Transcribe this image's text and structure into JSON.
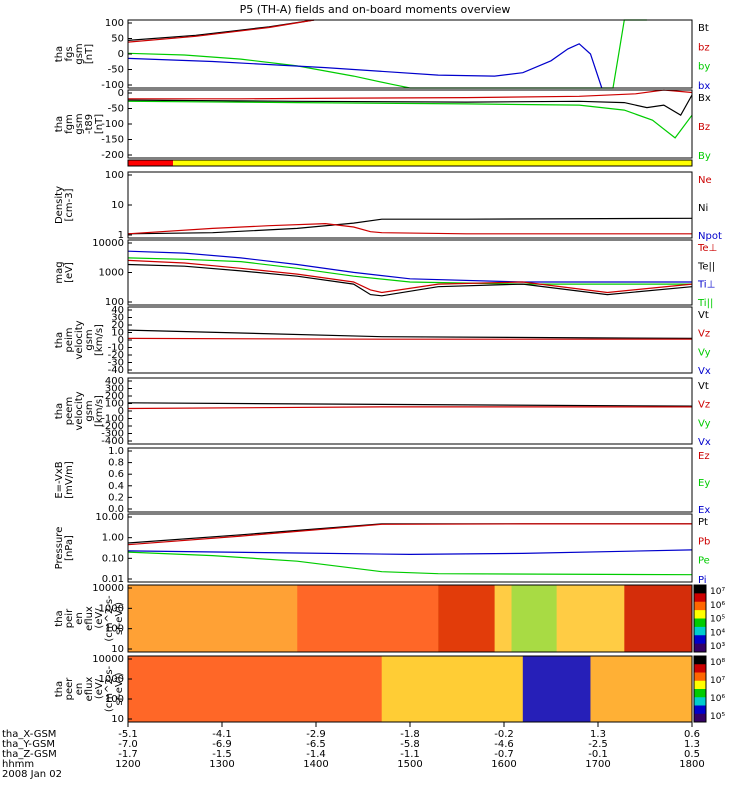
{
  "title": "P5 (TH-A) fields and on-board moments overview",
  "colors": {
    "black": "#000000",
    "red": "#cc0000",
    "green": "#00cc00",
    "blue": "#0000cc",
    "yellow": "#ffff00",
    "stateRed": "#ff0000"
  },
  "chart_data": [
    {
      "id": "fgs",
      "type": "line",
      "ylabel": [
        "tha",
        "fgs",
        "gsm",
        "[nT]"
      ],
      "ylim": [
        -100,
        100
      ],
      "yticks": [
        "100",
        "50",
        "0",
        "-50",
        "-100"
      ],
      "legend": [
        {
          "name": "Bt",
          "color": "#000000"
        },
        {
          "name": "bz",
          "color": "#cc0000"
        },
        {
          "name": "by",
          "color": "#00cc00"
        },
        {
          "name": "bx",
          "color": "#0000cc"
        }
      ],
      "series": [
        {
          "name": "Bt",
          "x": [
            0,
            0.12,
            0.25,
            0.33
          ],
          "y": [
            40,
            55,
            80,
            100
          ]
        },
        {
          "name": "bz",
          "x": [
            0,
            0.12,
            0.25,
            0.33
          ],
          "y": [
            35,
            52,
            78,
            100
          ]
        },
        {
          "name": "by",
          "x": [
            0,
            0.1,
            0.2,
            0.3,
            0.4,
            0.47,
            0.5,
            0.86,
            0.87,
            0.88,
            0.92
          ],
          "y": [
            2,
            -3,
            -15,
            -35,
            -65,
            -90,
            -100,
            -100,
            0,
            100,
            100
          ]
        },
        {
          "name": "bx",
          "x": [
            0,
            0.15,
            0.35,
            0.55,
            0.65,
            0.7,
            0.75,
            0.78,
            0.8,
            0.82,
            0.84
          ],
          "y": [
            -13,
            -22,
            -40,
            -62,
            -65,
            -55,
            -20,
            15,
            30,
            0,
            -100
          ]
        }
      ]
    },
    {
      "id": "fgm",
      "type": "line",
      "ylabel": [
        "tha",
        "fgm",
        "gsm",
        "-t89",
        "[nT]"
      ],
      "ylim": [
        -230,
        40
      ],
      "yticks": [
        "0",
        "-50",
        "-100",
        "-150",
        "-200"
      ],
      "legend": [
        {
          "name": "Bx",
          "color": "#000000"
        },
        {
          "name": "Bz",
          "color": "#cc0000"
        },
        {
          "name": "By",
          "color": "#00cc00"
        }
      ],
      "series": [
        {
          "name": "Bx",
          "x": [
            0,
            0.3,
            0.6,
            0.8,
            0.88,
            0.92,
            0.95,
            0.98,
            1.0
          ],
          "y": [
            0,
            -5,
            -8,
            -5,
            -10,
            -30,
            -20,
            -60,
            20
          ]
        },
        {
          "name": "Bz",
          "x": [
            0,
            0.2,
            0.4,
            0.6,
            0.8,
            0.9,
            0.95,
            1.0
          ],
          "y": [
            5,
            5,
            8,
            10,
            15,
            25,
            40,
            30
          ]
        },
        {
          "name": "By",
          "x": [
            0,
            0.3,
            0.6,
            0.8,
            0.88,
            0.93,
            0.97,
            1.0
          ],
          "y": [
            -5,
            -10,
            -15,
            -20,
            -40,
            -80,
            -150,
            -60
          ]
        }
      ]
    },
    {
      "id": "state",
      "type": "bar",
      "categories": [
        "red",
        "yellow"
      ],
      "x": [
        [
          0,
          0.08
        ],
        [
          0.08,
          1.0
        ]
      ]
    },
    {
      "id": "density",
      "type": "line",
      "ylabel": [
        "Density",
        "[cm-3]"
      ],
      "ylim": [
        0.7,
        200
      ],
      "yscale": "log",
      "yticks": [
        "100",
        "10",
        "1"
      ],
      "legend": [
        {
          "name": "Ne",
          "color": "#cc0000"
        },
        {
          "name": "Ni",
          "color": "#000000"
        },
        {
          "name": "Npot",
          "color": "#0000cc"
        }
      ],
      "series": [
        {
          "name": "Ni",
          "x": [
            0,
            0.15,
            0.3,
            0.4,
            0.45,
            0.6,
            1.0
          ],
          "y": [
            1,
            1.1,
            1.6,
            2.5,
            3.5,
            3.5,
            3.8
          ]
        },
        {
          "name": "Ne",
          "x": [
            0,
            0.15,
            0.25,
            0.35,
            0.4,
            0.43,
            0.45,
            0.6,
            1.0
          ],
          "y": [
            1,
            1.6,
            2.0,
            2.4,
            1.8,
            1.2,
            1.1,
            1.0,
            1.0
          ]
        }
      ]
    },
    {
      "id": "temp",
      "type": "line",
      "ylabel": [
        "mag",
        "[eV]"
      ],
      "ylim": [
        40,
        12000
      ],
      "yscale": "log",
      "yticks": [
        "10000",
        "1000",
        "100"
      ],
      "legend": [
        {
          "name": "Te⊥",
          "color": "#cc0000"
        },
        {
          "name": "Te||",
          "color": "#000000"
        },
        {
          "name": "Ti⊥",
          "color": "#0000cc"
        },
        {
          "name": "Ti||",
          "color": "#00cc00"
        }
      ],
      "series": [
        {
          "name": "Ti⊥",
          "x": [
            0,
            0.1,
            0.2,
            0.3,
            0.4,
            0.5,
            0.7,
            1.0
          ],
          "y": [
            4500,
            3800,
            2500,
            1400,
            700,
            400,
            300,
            300
          ]
        },
        {
          "name": "Ti||",
          "x": [
            0,
            0.1,
            0.2,
            0.3,
            0.4,
            0.5,
            0.7,
            1.0
          ],
          "y": [
            2500,
            2200,
            1800,
            1000,
            500,
            300,
            250,
            250
          ]
        },
        {
          "name": "Te⊥",
          "x": [
            0,
            0.1,
            0.2,
            0.3,
            0.4,
            0.43,
            0.45,
            0.55,
            0.7,
            0.85,
            1.0
          ],
          "y": [
            2000,
            1600,
            1000,
            600,
            300,
            150,
            120,
            250,
            300,
            120,
            250
          ]
        },
        {
          "name": "Te||",
          "x": [
            0,
            0.1,
            0.2,
            0.3,
            0.4,
            0.43,
            0.45,
            0.55,
            0.7,
            0.85,
            1.0
          ],
          "y": [
            1400,
            1200,
            800,
            500,
            250,
            100,
            90,
            200,
            250,
            100,
            200
          ]
        }
      ]
    },
    {
      "id": "peim_v",
      "type": "line",
      "ylabel": [
        "tha",
        "peim",
        "velocity",
        "gsm",
        "[km/s]"
      ],
      "ylim": [
        -40,
        40
      ],
      "yticks": [
        "40",
        "30",
        "20",
        "10",
        "0",
        "-10",
        "-20",
        "-30",
        "-40"
      ],
      "legend": [
        {
          "name": "Vt",
          "color": "#000000"
        },
        {
          "name": "Vz",
          "color": "#cc0000"
        },
        {
          "name": "Vy",
          "color": "#00cc00"
        },
        {
          "name": "Vx",
          "color": "#0000cc"
        }
      ],
      "series": [
        {
          "name": "Vt",
          "x": [
            0,
            0.45,
            1.0
          ],
          "y": [
            12,
            4,
            2
          ]
        },
        {
          "name": "Vz",
          "x": [
            0,
            0.45,
            1.0
          ],
          "y": [
            2,
            1,
            1
          ]
        }
      ]
    },
    {
      "id": "peem_v",
      "type": "line",
      "ylabel": [
        "tha",
        "peem",
        "velocity",
        "gsm",
        "[km/s]"
      ],
      "ylim": [
        -400,
        400
      ],
      "yticks": [
        "400",
        "300",
        "200",
        "100",
        "0",
        "-100",
        "-200",
        "-300",
        "-400"
      ],
      "legend": [
        {
          "name": "Vt",
          "color": "#000000"
        },
        {
          "name": "Vz",
          "color": "#cc0000"
        },
        {
          "name": "Vy",
          "color": "#00cc00"
        },
        {
          "name": "Vx",
          "color": "#0000cc"
        }
      ],
      "series": [
        {
          "name": "Vt",
          "x": [
            0,
            0.45,
            1.0
          ],
          "y": [
            100,
            80,
            60
          ]
        },
        {
          "name": "Vz",
          "x": [
            0,
            0.45,
            1.0
          ],
          "y": [
            30,
            50,
            50
          ]
        }
      ]
    },
    {
      "id": "efield",
      "type": "line",
      "ylabel": [
        "E=-VxB",
        "[mV/m]"
      ],
      "ylim": [
        0,
        1
      ],
      "yticks": [
        "1.0",
        "0.8",
        "0.6",
        "0.4",
        "0.2",
        "0.0"
      ],
      "legend": [
        {
          "name": "Ez",
          "color": "#cc0000"
        },
        {
          "name": "Ey",
          "color": "#00cc00"
        },
        {
          "name": "Ex",
          "color": "#0000cc"
        }
      ],
      "series": []
    },
    {
      "id": "pressure",
      "type": "line",
      "ylabel": [
        "Pressure",
        "[nPa]"
      ],
      "ylim": [
        0.008,
        15
      ],
      "yscale": "log",
      "yticks": [
        "10.00",
        "1.00",
        "0.10",
        "0.01"
      ],
      "legend": [
        {
          "name": "Pt",
          "color": "#000000"
        },
        {
          "name": "Pb",
          "color": "#cc0000"
        },
        {
          "name": "Pe",
          "color": "#00cc00"
        },
        {
          "name": "Pi",
          "color": "#0000cc"
        }
      ],
      "series": [
        {
          "name": "Pt",
          "x": [
            0,
            0.2,
            0.45,
            0.7,
            1.0
          ],
          "y": [
            0.6,
            1.5,
            5,
            5,
            5
          ]
        },
        {
          "name": "Pb",
          "x": [
            0,
            0.2,
            0.45,
            0.7,
            1.0
          ],
          "y": [
            0.5,
            1.3,
            4.8,
            5,
            5
          ]
        },
        {
          "name": "Pi",
          "x": [
            0,
            0.3,
            0.5,
            0.7,
            1.0
          ],
          "y": [
            0.25,
            0.2,
            0.17,
            0.19,
            0.28
          ]
        },
        {
          "name": "Pe",
          "x": [
            0,
            0.15,
            0.3,
            0.45,
            0.55,
            1.0
          ],
          "y": [
            0.22,
            0.15,
            0.08,
            0.025,
            0.02,
            0.018
          ]
        }
      ]
    },
    {
      "id": "peir",
      "type": "heatmap",
      "ylabel": [
        "tha",
        "peir",
        "en",
        "eflux",
        "(eV/",
        "(cm^2-s-",
        "sr-eV))"
      ],
      "ylim": [
        7,
        30000
      ],
      "yscale": "log",
      "yticks": [
        "10000",
        "1000",
        "100",
        "10"
      ],
      "colorbar": {
        "ticks": [
          "10⁷",
          "10⁶",
          "10⁵",
          "10⁴",
          "10³"
        ],
        "colors": [
          "#000000",
          "#cc0000",
          "#ff6600",
          "#ffff00",
          "#00cc00",
          "#00cccc",
          "#0000cc",
          "#330066"
        ]
      },
      "bands": [
        {
          "x": [
            0,
            0.3
          ],
          "color": "#ff9933"
        },
        {
          "x": [
            0.3,
            0.55
          ],
          "color": "#ff5522"
        },
        {
          "x": [
            0.55,
            0.65
          ],
          "color": "#dd2200"
        },
        {
          "x": [
            0.68,
            0.76
          ],
          "color": "#99dd44"
        },
        {
          "x": [
            0.88,
            1.0
          ],
          "color": "#cc1100"
        }
      ]
    },
    {
      "id": "peer",
      "type": "heatmap",
      "ylabel": [
        "tha",
        "peer",
        "en",
        "eflux",
        "(eV/",
        "(cm^2-s-",
        "sr-eV))"
      ],
      "ylim": [
        7,
        30000
      ],
      "yscale": "log",
      "yticks": [
        "10000",
        "1000",
        "100",
        "10"
      ],
      "colorbar": {
        "ticks": [
          "10⁸",
          "10⁷",
          "10⁶",
          "10⁵"
        ],
        "colors": [
          "#000000",
          "#cc0000",
          "#ff6600",
          "#ffff00",
          "#00cc00",
          "#00cccc",
          "#0000cc",
          "#330066"
        ]
      },
      "bands": [
        {
          "x": [
            0,
            0.45
          ],
          "color": "#ff5522"
        },
        {
          "x": [
            0.45,
            0.7
          ],
          "color": "#ffcc33"
        },
        {
          "x": [
            0.7,
            0.82
          ],
          "color": "#0000cc"
        },
        {
          "x": [
            0.82,
            1.0
          ],
          "color": "#ffaa33"
        }
      ]
    }
  ],
  "xaxis": {
    "rows": [
      {
        "label": "tha_X-GSM",
        "values": [
          "-5.1",
          "-4.1",
          "-2.9",
          "-1.8",
          "-0.2",
          "1.3",
          "0.6"
        ]
      },
      {
        "label": "tha_Y-GSM",
        "values": [
          "-7.0",
          "-6.9",
          "-6.5",
          "-5.8",
          "-4.6",
          "-2.5",
          "1.3"
        ]
      },
      {
        "label": "tha_Z-GSM",
        "values": [
          "-1.7",
          "-1.5",
          "-1.4",
          "-1.1",
          "-0.7",
          "-0.1",
          "0.5"
        ]
      },
      {
        "label": "hhmm",
        "values": [
          "1200",
          "1300",
          "1400",
          "1500",
          "1600",
          "1700",
          "1800"
        ]
      }
    ],
    "date": "2008 Jan 02"
  }
}
